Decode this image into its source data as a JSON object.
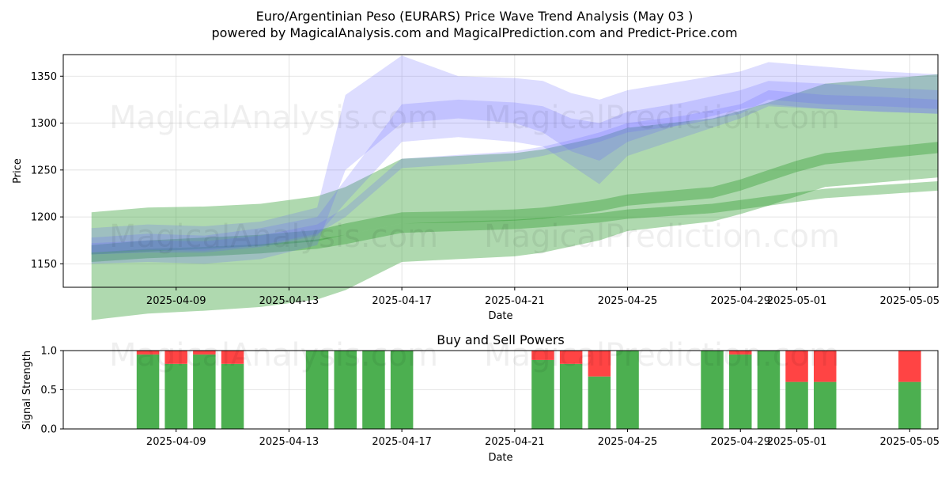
{
  "title_line1": "Euro/Argentinian Peso (EURARS) Price Wave Trend Analysis (May 03 )",
  "title_line2": "powered by MagicalAnalysis.com and MagicalPrediction.com and Predict-Price.com",
  "watermarks": [
    "MagicalAnalysis.com",
    "MagicalPrediction.com"
  ],
  "colors": {
    "buy": "#4CAF50",
    "sell": "#FF4444",
    "band_green": "#2e9b2e",
    "band_blue": "#6666ff",
    "grid": "#dddddd"
  },
  "chart_data": [
    {
      "type": "area",
      "title": "",
      "xlabel": "Date",
      "ylabel": "Price",
      "x_ticks": [
        "2025-04-09",
        "2025-04-13",
        "2025-04-17",
        "2025-04-21",
        "2025-04-25",
        "2025-04-29",
        "2025-05-01",
        "2025-05-05"
      ],
      "y_ticks": [
        1150,
        1200,
        1250,
        1300,
        1350
      ],
      "xlim": [
        "2025-04-05",
        "2025-05-06"
      ],
      "ylim": [
        1125,
        1373
      ],
      "grid": true,
      "series": [
        {
          "color": "green",
          "x": [
            "2025-04-06",
            "2025-04-08",
            "2025-04-10",
            "2025-04-12",
            "2025-04-14",
            "2025-04-15",
            "2025-04-17",
            "2025-04-19",
            "2025-04-21",
            "2025-04-22",
            "2025-04-24",
            "2025-04-25",
            "2025-04-28",
            "2025-04-29",
            "2025-04-30",
            "2025-05-01",
            "2025-05-02",
            "2025-05-04",
            "2025-05-06"
          ],
          "upper": [
            1205,
            1210,
            1211,
            1214,
            1222,
            1232,
            1262,
            1265,
            1268,
            1272,
            1285,
            1295,
            1305,
            1313,
            1322,
            1332,
            1342,
            1347,
            1352
          ],
          "lower": [
            1090,
            1097,
            1100,
            1104,
            1112,
            1122,
            1152,
            1155,
            1158,
            1162,
            1175,
            1185,
            1195,
            1203,
            1212,
            1222,
            1232,
            1237,
            1242
          ]
        },
        {
          "color": "green",
          "x": [
            "2025-04-06",
            "2025-04-08",
            "2025-04-10",
            "2025-04-12",
            "2025-04-14",
            "2025-04-15",
            "2025-04-17",
            "2025-04-19",
            "2025-04-21",
            "2025-04-22",
            "2025-04-24",
            "2025-04-25",
            "2025-04-28",
            "2025-04-29",
            "2025-04-30",
            "2025-05-01",
            "2025-05-02",
            "2025-05-04",
            "2025-05-06"
          ],
          "upper": [
            1170,
            1175,
            1178,
            1181,
            1186,
            1193,
            1205,
            1206,
            1208,
            1210,
            1218,
            1224,
            1232,
            1240,
            1250,
            1260,
            1268,
            1274,
            1280
          ],
          "lower": [
            1160,
            1163,
            1166,
            1169,
            1174,
            1181,
            1193,
            1194,
            1196,
            1198,
            1206,
            1212,
            1220,
            1228,
            1238,
            1248,
            1256,
            1262,
            1268
          ]
        },
        {
          "color": "green",
          "x": [
            "2025-04-06",
            "2025-04-08",
            "2025-04-10",
            "2025-04-12",
            "2025-04-14",
            "2025-04-15",
            "2025-04-17",
            "2025-04-19",
            "2025-04-21",
            "2025-04-22",
            "2025-04-24",
            "2025-04-25",
            "2025-04-28",
            "2025-04-29",
            "2025-04-30",
            "2025-05-01",
            "2025-05-02",
            "2025-05-04",
            "2025-05-06"
          ],
          "upper": [
            1162,
            1166,
            1168,
            1171,
            1176,
            1181,
            1193,
            1195,
            1197,
            1199,
            1204,
            1208,
            1214,
            1218,
            1222,
            1226,
            1230,
            1234,
            1238
          ],
          "lower": [
            1152,
            1156,
            1158,
            1161,
            1166,
            1171,
            1183,
            1185,
            1187,
            1189,
            1194,
            1198,
            1204,
            1208,
            1212,
            1216,
            1220,
            1224,
            1228
          ]
        },
        {
          "color": "blue",
          "x": [
            "2025-04-06",
            "2025-04-08",
            "2025-04-10",
            "2025-04-12",
            "2025-04-14",
            "2025-04-15",
            "2025-04-17",
            "2025-04-19",
            "2025-04-21",
            "2025-04-22",
            "2025-04-23",
            "2025-04-24",
            "2025-04-25",
            "2025-04-27",
            "2025-04-29",
            "2025-04-30",
            "2025-05-02",
            "2025-05-04",
            "2025-05-06"
          ],
          "upper": [
            1188,
            1192,
            1190,
            1195,
            1210,
            1330,
            1372,
            1350,
            1348,
            1345,
            1332,
            1325,
            1335,
            1345,
            1355,
            1365,
            1360,
            1355,
            1352
          ],
          "lower": [
            1150,
            1152,
            1150,
            1155,
            1170,
            1250,
            1300,
            1305,
            1300,
            1290,
            1270,
            1260,
            1280,
            1300,
            1315,
            1320,
            1315,
            1312,
            1310
          ]
        },
        {
          "color": "blue",
          "x": [
            "2025-04-06",
            "2025-04-08",
            "2025-04-10",
            "2025-04-12",
            "2025-04-14",
            "2025-04-15",
            "2025-04-17",
            "2025-04-19",
            "2025-04-21",
            "2025-04-22",
            "2025-04-23",
            "2025-04-24",
            "2025-04-25",
            "2025-04-27",
            "2025-04-29",
            "2025-04-30",
            "2025-05-02",
            "2025-05-04",
            "2025-05-06"
          ],
          "upper": [
            1178,
            1182,
            1180,
            1188,
            1200,
            1240,
            1320,
            1325,
            1322,
            1318,
            1305,
            1300,
            1312,
            1322,
            1335,
            1345,
            1342,
            1338,
            1335
          ],
          "lower": [
            1160,
            1162,
            1162,
            1168,
            1180,
            1215,
            1280,
            1285,
            1280,
            1275,
            1255,
            1235,
            1265,
            1285,
            1305,
            1318,
            1315,
            1312,
            1310
          ]
        },
        {
          "color": "blue",
          "x": [
            "2025-04-06",
            "2025-04-08",
            "2025-04-10",
            "2025-04-12",
            "2025-04-14",
            "2025-04-15",
            "2025-04-17",
            "2025-04-19",
            "2025-04-21",
            "2025-04-22",
            "2025-04-23",
            "2025-04-24",
            "2025-04-25",
            "2025-04-27",
            "2025-04-29",
            "2025-04-30",
            "2025-05-02",
            "2025-05-04",
            "2025-05-06"
          ],
          "upper": [
            1172,
            1175,
            1174,
            1180,
            1192,
            1210,
            1262,
            1266,
            1270,
            1275,
            1282,
            1290,
            1300,
            1308,
            1320,
            1335,
            1330,
            1328,
            1325
          ],
          "lower": [
            1162,
            1165,
            1164,
            1170,
            1182,
            1200,
            1252,
            1256,
            1260,
            1265,
            1272,
            1280,
            1290,
            1298,
            1310,
            1325,
            1320,
            1318,
            1315
          ]
        }
      ]
    },
    {
      "type": "bar",
      "title": "Buy and Sell Powers",
      "xlabel": "Date",
      "ylabel": "Signal Strength",
      "x_ticks": [
        "2025-04-09",
        "2025-04-13",
        "2025-04-17",
        "2025-04-21",
        "2025-04-25",
        "2025-04-29",
        "2025-05-01",
        "2025-05-05"
      ],
      "y_ticks": [
        "0.0",
        "0.5",
        "1.0"
      ],
      "ylim": [
        0,
        1
      ],
      "grid": true,
      "series": [
        {
          "name": "Buy",
          "color": "#4CAF50"
        },
        {
          "name": "Sell",
          "color": "#FF4444"
        }
      ],
      "x": [
        "2025-04-08",
        "2025-04-09",
        "2025-04-10",
        "2025-04-11",
        "2025-04-14",
        "2025-04-15",
        "2025-04-16",
        "2025-04-17",
        "2025-04-22",
        "2025-04-23",
        "2025-04-24",
        "2025-04-25",
        "2025-04-28",
        "2025-04-29",
        "2025-04-30",
        "2025-05-01",
        "2025-05-02",
        "2025-05-05"
      ],
      "buy": [
        0.95,
        0.83,
        0.95,
        0.83,
        1.0,
        1.0,
        1.0,
        1.0,
        0.88,
        0.83,
        0.67,
        1.0,
        1.0,
        0.95,
        1.0,
        0.6,
        0.6,
        0.6
      ],
      "sell": [
        0.05,
        0.17,
        0.05,
        0.17,
        0.0,
        0.0,
        0.0,
        0.0,
        0.12,
        0.17,
        0.33,
        0.0,
        0.0,
        0.05,
        0.0,
        0.4,
        0.4,
        0.4
      ]
    }
  ]
}
